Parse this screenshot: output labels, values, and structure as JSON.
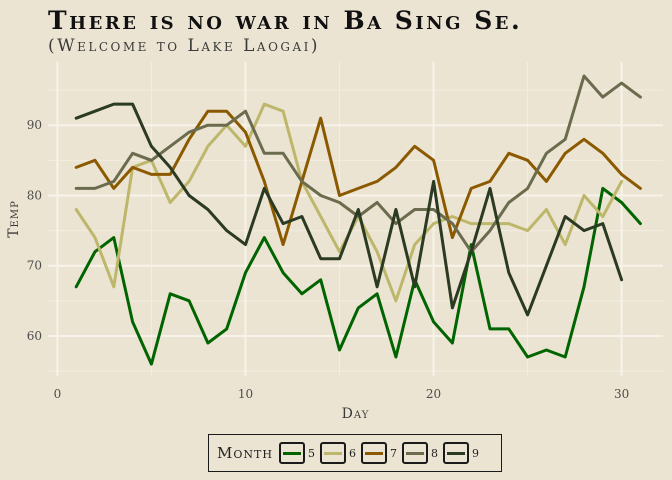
{
  "title": "There is no war in Ba Sing Se.",
  "subtitle": "(Welcome to Lake Laogai)",
  "chart_data": {
    "type": "line",
    "title": "There is no war in Ba Sing Se.",
    "subtitle": "(Welcome to Lake Laogai)",
    "xlabel": "Day",
    "ylabel": "Temp",
    "xlim": [
      -0.5,
      32.2
    ],
    "ylim": [
      54.3,
      99
    ],
    "x_ticks": [
      0,
      10,
      20,
      30
    ],
    "y_ticks": [
      60,
      70,
      80,
      90
    ],
    "grid": true,
    "legend_position": "bottom",
    "legend_title": "Month",
    "series": [
      {
        "name": "5",
        "color": "#006400",
        "x": [
          1,
          2,
          3,
          4,
          5,
          6,
          7,
          8,
          9,
          10,
          11,
          12,
          13,
          14,
          15,
          16,
          17,
          18,
          19,
          20,
          21,
          22,
          23,
          24,
          25,
          26,
          27,
          28,
          29,
          30,
          31
        ],
        "values": [
          67,
          72,
          74,
          62,
          56,
          66,
          65,
          59,
          61,
          69,
          74,
          69,
          66,
          68,
          58,
          64,
          66,
          57,
          68,
          62,
          59,
          73,
          61,
          61,
          57,
          58,
          57,
          67,
          81,
          79,
          76
        ]
      },
      {
        "name": "6",
        "color": "#bdb76b",
        "x": [
          1,
          2,
          3,
          4,
          5,
          6,
          7,
          8,
          9,
          10,
          11,
          12,
          13,
          14,
          15,
          16,
          17,
          18,
          19,
          20,
          21,
          22,
          23,
          24,
          25,
          26,
          27,
          28,
          29,
          30
        ],
        "values": [
          78,
          74,
          67,
          84,
          85,
          79,
          82,
          87,
          90,
          87,
          93,
          92,
          82,
          77,
          72,
          77,
          72,
          65,
          73,
          76,
          77,
          76,
          76,
          76,
          75,
          78,
          73,
          80,
          77,
          82
        ]
      },
      {
        "name": "7",
        "color": "#8b5a00",
        "x": [
          1,
          2,
          3,
          4,
          5,
          6,
          7,
          8,
          9,
          10,
          11,
          12,
          13,
          14,
          15,
          16,
          17,
          18,
          19,
          20,
          21,
          22,
          23,
          24,
          25,
          26,
          27,
          28,
          29,
          30,
          31
        ],
        "values": [
          84,
          85,
          81,
          84,
          83,
          83,
          88,
          92,
          92,
          89,
          82,
          73,
          82,
          91,
          80,
          81,
          82,
          84,
          87,
          85,
          74,
          81,
          82,
          86,
          85,
          82,
          86,
          88,
          86,
          83,
          81
        ]
      },
      {
        "name": "8",
        "color": "#6b6b4e",
        "x": [
          1,
          2,
          3,
          4,
          5,
          6,
          7,
          8,
          9,
          10,
          11,
          12,
          13,
          14,
          15,
          16,
          17,
          18,
          19,
          20,
          21,
          22,
          23,
          24,
          25,
          26,
          27,
          28,
          29,
          30,
          31
        ],
        "values": [
          81,
          81,
          82,
          86,
          85,
          87,
          89,
          90,
          90,
          92,
          86,
          86,
          82,
          80,
          79,
          77,
          79,
          76,
          78,
          78,
          76,
          72,
          75,
          79,
          81,
          86,
          88,
          97,
          94,
          96,
          94
        ]
      },
      {
        "name": "9",
        "color": "#2b3a22",
        "x": [
          1,
          2,
          3,
          4,
          5,
          6,
          7,
          8,
          9,
          10,
          11,
          12,
          13,
          14,
          15,
          16,
          17,
          18,
          19,
          20,
          21,
          22,
          23,
          24,
          25,
          26,
          27,
          28,
          29,
          30
        ],
        "values": [
          91,
          92,
          93,
          93,
          87,
          84,
          80,
          78,
          75,
          73,
          81,
          76,
          77,
          71,
          71,
          78,
          67,
          78,
          67,
          82,
          64,
          72,
          81,
          69,
          63,
          70,
          77,
          75,
          76,
          68
        ]
      }
    ]
  }
}
